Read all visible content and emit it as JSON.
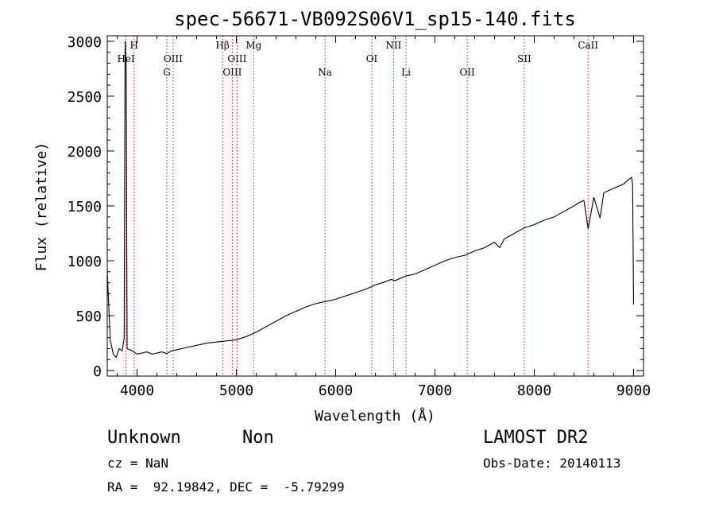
{
  "chart_data": {
    "type": "line",
    "title": "spec-56671-VB092S06V1_sp15-140.fits",
    "xlabel": "Wavelength (Å)",
    "ylabel": "Flux (relative)",
    "xlim": [
      3700,
      9100
    ],
    "ylim": [
      -50,
      3050
    ],
    "x_ticks": [
      4000,
      5000,
      6000,
      7000,
      8000,
      9000
    ],
    "y_ticks": [
      0,
      500,
      1000,
      1500,
      2000,
      2500,
      3000
    ],
    "grid": false,
    "colors": {
      "spectrum": "#000000",
      "line_marker": "#b22222",
      "axes": "#000000"
    },
    "series": [
      {
        "x": [
          3700,
          3730,
          3760,
          3790,
          3820,
          3850,
          3870,
          3880,
          3890,
          3900,
          3950,
          4000,
          4050,
          4100,
          4150,
          4200,
          4250,
          4300,
          4350,
          4400,
          4500,
          4600,
          4700,
          4800,
          4900,
          5000,
          5100,
          5200,
          5300,
          5400,
          5500,
          5600,
          5700,
          5800,
          5900,
          6000,
          6100,
          6200,
          6300,
          6400,
          6500,
          6560,
          6600,
          6700,
          6800,
          6900,
          7000,
          7100,
          7200,
          7300,
          7400,
          7500,
          7600,
          7650,
          7700,
          7800,
          7900,
          8000,
          8100,
          8200,
          8300,
          8400,
          8450,
          8500,
          8542,
          8600,
          8662,
          8700,
          8800,
          8900,
          8950,
          8980,
          8990,
          9000
        ],
        "y": [
          900,
          280,
          150,
          120,
          200,
          180,
          300,
          3000,
          2800,
          200,
          180,
          150,
          160,
          170,
          150,
          160,
          170,
          155,
          180,
          190,
          210,
          230,
          250,
          260,
          270,
          280,
          310,
          350,
          400,
          450,
          500,
          540,
          580,
          610,
          630,
          650,
          680,
          710,
          740,
          780,
          810,
          830,
          820,
          860,
          880,
          920,
          960,
          1000,
          1030,
          1050,
          1090,
          1120,
          1170,
          1120,
          1200,
          1250,
          1300,
          1330,
          1370,
          1400,
          1450,
          1500,
          1530,
          1550,
          1290,
          1580,
          1390,
          1620,
          1660,
          1700,
          1740,
          1760,
          1700,
          600
        ]
      }
    ],
    "line_markers": [
      {
        "label": "H",
        "x": 3970,
        "row": 1
      },
      {
        "label": "HeI",
        "x": 3889,
        "row": 2
      },
      {
        "label": "OIII",
        "x": 4363,
        "row": 2
      },
      {
        "label": "G",
        "x": 4300,
        "row": 3
      },
      {
        "label": "Hβ",
        "x": 4861,
        "row": 1
      },
      {
        "label": "OIII",
        "x": 5007,
        "row": 2
      },
      {
        "label": "OIII",
        "x": 4959,
        "row": 3
      },
      {
        "label": "Mg",
        "x": 5175,
        "row": 1
      },
      {
        "label": "Na",
        "x": 5893,
        "row": 3
      },
      {
        "label": "OI",
        "x": 6364,
        "row": 2
      },
      {
        "label": "NII",
        "x": 6583,
        "row": 1
      },
      {
        "label": "Li",
        "x": 6708,
        "row": 3
      },
      {
        "label": "OII",
        "x": 7325,
        "row": 3
      },
      {
        "label": "SII",
        "x": 7900,
        "row": 2
      },
      {
        "label": "CaII",
        "x": 8542,
        "row": 1
      }
    ]
  },
  "info": {
    "object_class": "Unknown",
    "object_subclass": "Non",
    "survey": "LAMOST DR2",
    "redshift": "cz = NaN",
    "obs_date": "Obs-Date: 20140113",
    "coords": "RA =  92.19842, DEC =  -5.79299"
  }
}
